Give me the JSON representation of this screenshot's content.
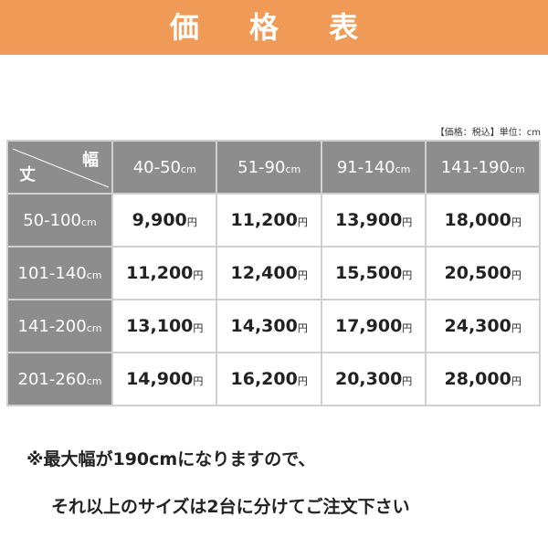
{
  "title": "価 格 表",
  "note": "【価格：税込】単位：cm",
  "corner": {
    "height_label": "丈",
    "width_label": "幅"
  },
  "unit_cm": "cm",
  "unit_yen": "円",
  "columns": [
    "40-50",
    "51-90",
    "91-140",
    "141-190"
  ],
  "rows": [
    {
      "label": "50-100",
      "prices": [
        "9,900",
        "11,200",
        "13,900",
        "18,000"
      ]
    },
    {
      "label": "101-140",
      "prices": [
        "11,200",
        "12,400",
        "15,500",
        "20,500"
      ]
    },
    {
      "label": "141-200",
      "prices": [
        "13,100",
        "14,300",
        "17,900",
        "24,300"
      ]
    },
    {
      "label": "201-260",
      "prices": [
        "14,900",
        "16,200",
        "20,300",
        "28,000"
      ]
    }
  ],
  "footer": [
    "※最大幅が190cmになりますので、",
    "それ以上のサイズは2台に分けてご注文下さい"
  ],
  "colors": {
    "banner": "#ef9b57",
    "header": "#8d8d8d"
  }
}
